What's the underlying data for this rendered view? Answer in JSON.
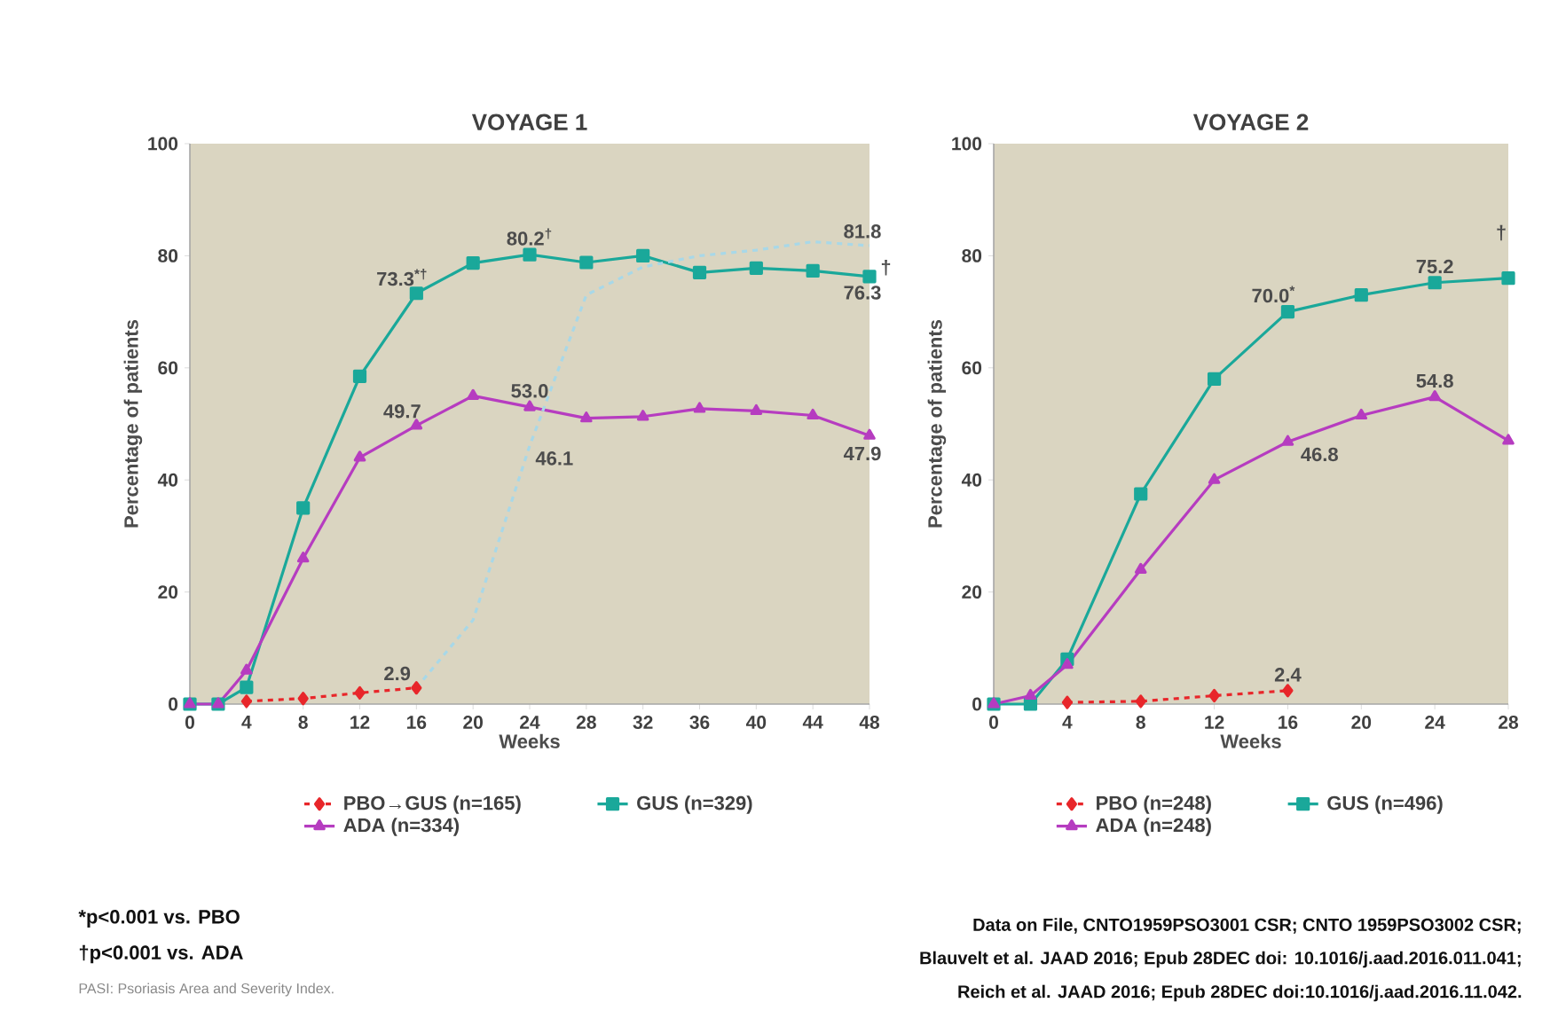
{
  "chart_data": [
    {
      "type": "line",
      "title": "VOYAGE 1",
      "xlabel": "Weeks",
      "ylabel": "Percentage of patients",
      "xlim": [
        0,
        48
      ],
      "xticks": [
        0,
        4,
        8,
        12,
        16,
        20,
        24,
        28,
        32,
        36,
        40,
        44,
        48
      ],
      "ylim": [
        0,
        100
      ],
      "yticks": [
        0,
        20,
        40,
        60,
        80,
        100
      ],
      "legend": "bottom",
      "series": [
        {
          "name": "PBO→GUS (n=165)",
          "color": "#e8262a",
          "marker": "diamond",
          "line_style": "dashed",
          "x": [
            4,
            8,
            12,
            16
          ],
          "values": [
            0.5,
            1.0,
            2.0,
            2.9
          ]
        },
        {
          "name": "GUS (n=329)",
          "color": "#1aa89a",
          "marker": "square",
          "line_style": "solid",
          "x": [
            0,
            2,
            4,
            8,
            12,
            16,
            20,
            24,
            28,
            32,
            36,
            40,
            44,
            48
          ],
          "values": [
            0,
            0,
            3,
            35,
            58.5,
            73.3,
            78.7,
            80.2,
            78.8,
            80.0,
            77,
            77.8,
            77.3,
            76.3
          ]
        },
        {
          "name": "ADA (n=334)",
          "color": "#b63cc0",
          "marker": "triangle",
          "line_style": "solid",
          "x": [
            0,
            2,
            4,
            8,
            12,
            16,
            20,
            24,
            28,
            32,
            36,
            40,
            44,
            48
          ],
          "values": [
            0,
            0,
            6,
            26,
            44,
            49.7,
            55,
            53.0,
            51,
            51.3,
            52.7,
            52.3,
            51.5,
            47.9
          ]
        },
        {
          "color": "#a8d8e8",
          "marker": "none",
          "line_style": "dashed",
          "x": [
            16,
            20,
            24,
            28,
            32,
            36,
            40,
            44,
            48
          ],
          "values": [
            2.9,
            15,
            46.1,
            73,
            78,
            80,
            81,
            82.5,
            81.8
          ]
        }
      ],
      "annotations": [
        {
          "text": "73.3$^{*†}$",
          "x": 16,
          "y": 73.3
        },
        {
          "text": "80.2$^{†}$",
          "x": 24,
          "y": 80.2
        },
        {
          "text": "81.8",
          "x": 48,
          "y": 81.8
        },
        {
          "text": "76.3",
          "x": 48,
          "y": 76.3
        },
        {
          "text": "49.7",
          "x": 16,
          "y": 49.7
        },
        {
          "text": "53.0",
          "x": 24,
          "y": 53.0
        },
        {
          "text": "46.1",
          "x": 24,
          "y": 46.1
        },
        {
          "text": "47.9",
          "x": 48,
          "y": 47.9
        },
        {
          "text": "2.9",
          "x": 16,
          "y": 2.9
        },
        {
          "text": "†",
          "x": 48,
          "y": 76.3
        },
        "*p<0.001 vs. PBO",
        "†p<0.001 vs. ADA",
        "PASI: Psoriasis Area and Severity Index."
      ]
    },
    {
      "type": "line",
      "title": "VOYAGE 2",
      "xlabel": "Weeks",
      "ylabel": "Percentage of patients",
      "xlim": [
        0,
        28
      ],
      "xticks": [
        0,
        4,
        8,
        12,
        16,
        20,
        24,
        28
      ],
      "ylim": [
        0,
        100
      ],
      "yticks": [
        0,
        20,
        40,
        60,
        80,
        100
      ],
      "legend": "bottom",
      "series": [
        {
          "name": "PBO (n=248)",
          "color": "#e8262a",
          "marker": "diamond",
          "line_style": "dashed",
          "x": [
            4,
            8,
            12,
            16
          ],
          "values": [
            0.3,
            0.5,
            1.5,
            2.4
          ]
        },
        {
          "name": "GUS (n=496)",
          "color": "#1aa89a",
          "marker": "square",
          "line_style": "solid",
          "x": [
            0,
            2,
            4,
            8,
            12,
            16,
            20,
            24,
            28
          ],
          "values": [
            0,
            0,
            8,
            37.5,
            58,
            70.0,
            73,
            75.2,
            76
          ]
        },
        {
          "name": "ADA (n=248)",
          "color": "#b63cc0",
          "marker": "triangle",
          "line_style": "solid",
          "x": [
            0,
            2,
            4,
            8,
            12,
            16,
            20,
            24,
            28
          ],
          "values": [
            0,
            1.5,
            7,
            24,
            40,
            46.8,
            51.5,
            54.8,
            47
          ]
        }
      ],
      "annotations": [
        {
          "text": "70.0$^{*}$",
          "x": 16,
          "y": 70.0
        },
        {
          "text": "75.2",
          "x": 24,
          "y": 75.2
        },
        {
          "text": "†",
          "x": 28,
          "y": 76
        },
        {
          "text": "54.8",
          "x": 24,
          "y": 54.8
        },
        {
          "text": "46.8",
          "x": 16,
          "y": 46.8
        },
        {
          "text": "2.4",
          "x": 16,
          "y": 2.4
        },
        "Data on File, CNTO1959PSO3001 CSR; CNTO 1959PSO3002 CSR;",
        "Blauvelt et al. JAAD 2016; Epub 28DEC doi: 10.1016/j.aad.2016.011.041;",
        "Reich et al. JAAD 2016; Epub 28DEC doi:10.1016/j.aad.2016.11.042."
      ]
    }
  ]
}
